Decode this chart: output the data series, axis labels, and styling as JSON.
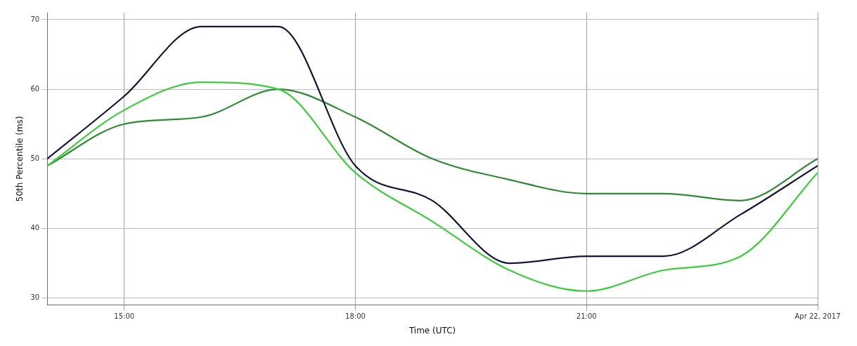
{
  "chart_data": {
    "type": "line",
    "xlabel": "Time (UTC)",
    "ylabel": "50th Percentile (ms)",
    "x": [
      14,
      15,
      16,
      17,
      18,
      19,
      20,
      21,
      22,
      23,
      24
    ],
    "series": [
      {
        "color": "#15163a",
        "values": [
          50,
          59,
          69,
          69,
          49,
          44,
          35,
          36,
          36,
          42,
          49
        ]
      },
      {
        "color": "#3ccc3c",
        "values": [
          49,
          57,
          61,
          60,
          48,
          41,
          34,
          31,
          34,
          36,
          48
        ]
      },
      {
        "color": "#2e8b34",
        "values": [
          49,
          55,
          56,
          60,
          56,
          50,
          47,
          45,
          45,
          44,
          50
        ]
      }
    ],
    "xlim": [
      14,
      24
    ],
    "xticks": [
      {
        "value": 15,
        "label": "15:00"
      },
      {
        "value": 18,
        "label": "18:00"
      },
      {
        "value": 21,
        "label": "21:00"
      },
      {
        "value": 24,
        "label": "Apr 22, 2017"
      }
    ],
    "ylim": [
      29,
      71
    ],
    "yticks": [
      30,
      40,
      50,
      60,
      70
    ],
    "grid": true,
    "legend": false,
    "marker": "none",
    "line_style": "solid"
  }
}
